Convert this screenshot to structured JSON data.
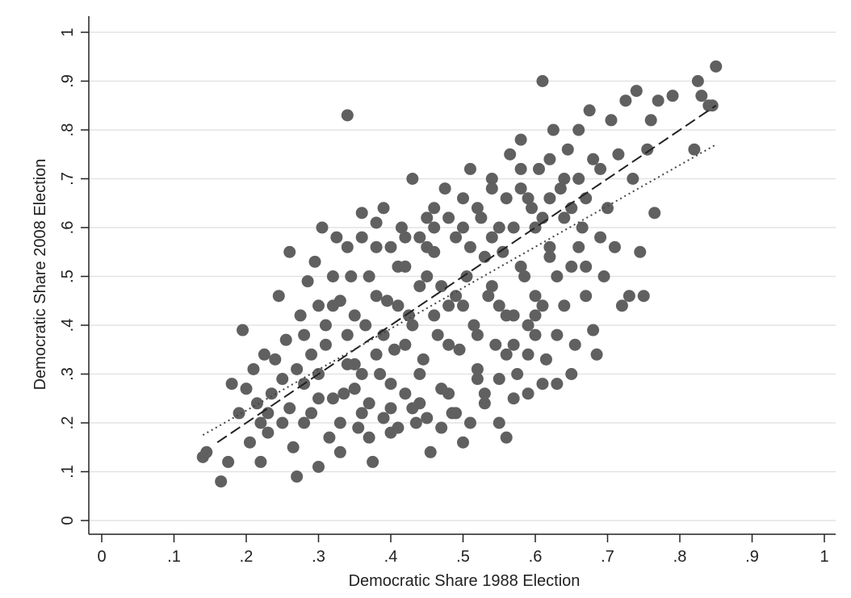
{
  "chart_data": {
    "type": "scatter",
    "title": "",
    "xlabel": "Democratic Share 1988 Election",
    "ylabel": "Democratic Share 2008 Election",
    "xlim": [
      0,
      1
    ],
    "ylim": [
      0,
      1
    ],
    "xticks": [
      "0",
      ".1",
      ".2",
      ".3",
      ".4",
      ".5",
      ".6",
      ".7",
      ".8",
      ".9",
      "1"
    ],
    "yticks": [
      "0",
      ".1",
      ".2",
      ".3",
      ".4",
      ".5",
      ".6",
      ".7",
      ".8",
      ".9",
      "1"
    ],
    "grid": true,
    "legend": "none",
    "marker_color": "#606060",
    "points": [
      [
        0.14,
        0.13
      ],
      [
        0.145,
        0.14
      ],
      [
        0.165,
        0.08
      ],
      [
        0.175,
        0.12
      ],
      [
        0.18,
        0.28
      ],
      [
        0.19,
        0.22
      ],
      [
        0.195,
        0.39
      ],
      [
        0.2,
        0.27
      ],
      [
        0.205,
        0.16
      ],
      [
        0.21,
        0.31
      ],
      [
        0.215,
        0.24
      ],
      [
        0.22,
        0.12
      ],
      [
        0.225,
        0.34
      ],
      [
        0.23,
        0.18
      ],
      [
        0.235,
        0.26
      ],
      [
        0.24,
        0.33
      ],
      [
        0.245,
        0.46
      ],
      [
        0.25,
        0.2
      ],
      [
        0.255,
        0.37
      ],
      [
        0.26,
        0.55
      ],
      [
        0.265,
        0.15
      ],
      [
        0.27,
        0.09
      ],
      [
        0.275,
        0.42
      ],
      [
        0.28,
        0.28
      ],
      [
        0.285,
        0.49
      ],
      [
        0.29,
        0.22
      ],
      [
        0.295,
        0.53
      ],
      [
        0.3,
        0.11
      ],
      [
        0.305,
        0.6
      ],
      [
        0.31,
        0.36
      ],
      [
        0.315,
        0.17
      ],
      [
        0.32,
        0.44
      ],
      [
        0.325,
        0.58
      ],
      [
        0.33,
        0.14
      ],
      [
        0.335,
        0.26
      ],
      [
        0.34,
        0.83
      ],
      [
        0.345,
        0.5
      ],
      [
        0.35,
        0.32
      ],
      [
        0.355,
        0.19
      ],
      [
        0.36,
        0.63
      ],
      [
        0.365,
        0.4
      ],
      [
        0.37,
        0.24
      ],
      [
        0.375,
        0.12
      ],
      [
        0.38,
        0.56
      ],
      [
        0.385,
        0.3
      ],
      [
        0.39,
        0.64
      ],
      [
        0.395,
        0.45
      ],
      [
        0.4,
        0.18
      ],
      [
        0.405,
        0.35
      ],
      [
        0.41,
        0.52
      ],
      [
        0.415,
        0.6
      ],
      [
        0.42,
        0.26
      ],
      [
        0.425,
        0.42
      ],
      [
        0.43,
        0.7
      ],
      [
        0.435,
        0.2
      ],
      [
        0.44,
        0.48
      ],
      [
        0.445,
        0.33
      ],
      [
        0.45,
        0.62
      ],
      [
        0.455,
        0.14
      ],
      [
        0.46,
        0.55
      ],
      [
        0.465,
        0.38
      ],
      [
        0.47,
        0.27
      ],
      [
        0.475,
        0.68
      ],
      [
        0.48,
        0.44
      ],
      [
        0.485,
        0.22
      ],
      [
        0.49,
        0.58
      ],
      [
        0.495,
        0.35
      ],
      [
        0.5,
        0.16
      ],
      [
        0.505,
        0.5
      ],
      [
        0.51,
        0.72
      ],
      [
        0.515,
        0.4
      ],
      [
        0.52,
        0.29
      ],
      [
        0.525,
        0.62
      ],
      [
        0.53,
        0.24
      ],
      [
        0.535,
        0.46
      ],
      [
        0.54,
        0.68
      ],
      [
        0.545,
        0.36
      ],
      [
        0.55,
        0.2
      ],
      [
        0.555,
        0.55
      ],
      [
        0.56,
        0.17
      ],
      [
        0.565,
        0.75
      ],
      [
        0.57,
        0.42
      ],
      [
        0.575,
        0.3
      ],
      [
        0.58,
        0.78
      ],
      [
        0.585,
        0.5
      ],
      [
        0.59,
        0.26
      ],
      [
        0.595,
        0.64
      ],
      [
        0.6,
        0.38
      ],
      [
        0.605,
        0.72
      ],
      [
        0.61,
        0.9
      ],
      [
        0.615,
        0.33
      ],
      [
        0.62,
        0.56
      ],
      [
        0.625,
        0.8
      ],
      [
        0.63,
        0.28
      ],
      [
        0.635,
        0.68
      ],
      [
        0.64,
        0.44
      ],
      [
        0.645,
        0.76
      ],
      [
        0.65,
        0.52
      ],
      [
        0.655,
        0.36
      ],
      [
        0.66,
        0.8
      ],
      [
        0.665,
        0.6
      ],
      [
        0.67,
        0.46
      ],
      [
        0.675,
        0.84
      ],
      [
        0.68,
        0.39
      ],
      [
        0.685,
        0.34
      ],
      [
        0.69,
        0.72
      ],
      [
        0.695,
        0.5
      ],
      [
        0.7,
        0.64
      ],
      [
        0.705,
        0.82
      ],
      [
        0.71,
        0.56
      ],
      [
        0.715,
        0.75
      ],
      [
        0.72,
        0.44
      ],
      [
        0.725,
        0.86
      ],
      [
        0.73,
        0.46
      ],
      [
        0.735,
        0.7
      ],
      [
        0.74,
        0.88
      ],
      [
        0.745,
        0.55
      ],
      [
        0.75,
        0.46
      ],
      [
        0.755,
        0.76
      ],
      [
        0.76,
        0.82
      ],
      [
        0.765,
        0.63
      ],
      [
        0.77,
        0.86
      ],
      [
        0.79,
        0.87
      ],
      [
        0.82,
        0.76
      ],
      [
        0.825,
        0.9
      ],
      [
        0.83,
        0.87
      ],
      [
        0.84,
        0.85
      ],
      [
        0.845,
        0.85
      ],
      [
        0.85,
        0.93
      ],
      [
        0.28,
        0.2
      ],
      [
        0.3,
        0.3
      ],
      [
        0.32,
        0.25
      ],
      [
        0.34,
        0.38
      ],
      [
        0.36,
        0.3
      ],
      [
        0.38,
        0.34
      ],
      [
        0.4,
        0.28
      ],
      [
        0.42,
        0.36
      ],
      [
        0.44,
        0.3
      ],
      [
        0.46,
        0.42
      ],
      [
        0.48,
        0.36
      ],
      [
        0.5,
        0.44
      ],
      [
        0.52,
        0.38
      ],
      [
        0.54,
        0.48
      ],
      [
        0.56,
        0.42
      ],
      [
        0.58,
        0.52
      ],
      [
        0.6,
        0.46
      ],
      [
        0.62,
        0.54
      ],
      [
        0.33,
        0.45
      ],
      [
        0.37,
        0.5
      ],
      [
        0.41,
        0.44
      ],
      [
        0.45,
        0.5
      ],
      [
        0.49,
        0.46
      ],
      [
        0.53,
        0.54
      ],
      [
        0.57,
        0.6
      ],
      [
        0.61,
        0.62
      ],
      [
        0.31,
        0.4
      ],
      [
        0.35,
        0.42
      ],
      [
        0.39,
        0.38
      ],
      [
        0.43,
        0.4
      ],
      [
        0.47,
        0.48
      ],
      [
        0.51,
        0.56
      ],
      [
        0.55,
        0.6
      ],
      [
        0.59,
        0.66
      ],
      [
        0.29,
        0.34
      ],
      [
        0.27,
        0.31
      ],
      [
        0.25,
        0.29
      ],
      [
        0.23,
        0.22
      ],
      [
        0.36,
        0.22
      ],
      [
        0.4,
        0.23
      ],
      [
        0.44,
        0.24
      ],
      [
        0.48,
        0.26
      ],
      [
        0.52,
        0.31
      ],
      [
        0.56,
        0.34
      ],
      [
        0.6,
        0.42
      ],
      [
        0.63,
        0.5
      ],
      [
        0.66,
        0.56
      ],
      [
        0.42,
        0.58
      ],
      [
        0.46,
        0.64
      ],
      [
        0.5,
        0.66
      ],
      [
        0.54,
        0.7
      ],
      [
        0.58,
        0.72
      ],
      [
        0.62,
        0.74
      ],
      [
        0.38,
        0.46
      ],
      [
        0.34,
        0.32
      ],
      [
        0.3,
        0.25
      ],
      [
        0.26,
        0.23
      ],
      [
        0.22,
        0.2
      ],
      [
        0.45,
        0.56
      ],
      [
        0.55,
        0.44
      ],
      [
        0.57,
        0.25
      ],
      [
        0.59,
        0.34
      ],
      [
        0.61,
        0.28
      ],
      [
        0.63,
        0.38
      ],
      [
        0.65,
        0.3
      ],
      [
        0.67,
        0.52
      ],
      [
        0.69,
        0.58
      ],
      [
        0.64,
        0.62
      ],
      [
        0.66,
        0.7
      ],
      [
        0.68,
        0.74
      ],
      [
        0.33,
        0.2
      ],
      [
        0.35,
        0.27
      ],
      [
        0.37,
        0.17
      ],
      [
        0.39,
        0.21
      ],
      [
        0.41,
        0.19
      ],
      [
        0.43,
        0.23
      ],
      [
        0.45,
        0.21
      ],
      [
        0.47,
        0.19
      ],
      [
        0.49,
        0.22
      ],
      [
        0.51,
        0.2
      ],
      [
        0.53,
        0.26
      ],
      [
        0.55,
        0.29
      ],
      [
        0.57,
        0.36
      ],
      [
        0.59,
        0.4
      ],
      [
        0.61,
        0.44
      ],
      [
        0.28,
        0.38
      ],
      [
        0.3,
        0.44
      ],
      [
        0.32,
        0.5
      ],
      [
        0.34,
        0.56
      ],
      [
        0.36,
        0.58
      ],
      [
        0.38,
        0.61
      ],
      [
        0.4,
        0.56
      ],
      [
        0.42,
        0.52
      ],
      [
        0.44,
        0.58
      ],
      [
        0.46,
        0.6
      ],
      [
        0.48,
        0.62
      ],
      [
        0.5,
        0.6
      ],
      [
        0.52,
        0.64
      ],
      [
        0.54,
        0.58
      ],
      [
        0.56,
        0.66
      ],
      [
        0.58,
        0.68
      ],
      [
        0.6,
        0.6
      ],
      [
        0.62,
        0.66
      ],
      [
        0.64,
        0.7
      ],
      [
        0.65,
        0.64
      ],
      [
        0.67,
        0.66
      ]
    ],
    "fit_lines": [
      {
        "style": "dashed",
        "color": "#222222",
        "x": [
          0.16,
          0.85
        ],
        "y": [
          0.16,
          0.85
        ]
      },
      {
        "style": "dotted",
        "color": "#444444",
        "x": [
          0.14,
          0.85
        ],
        "y": [
          0.175,
          0.77
        ]
      }
    ]
  }
}
